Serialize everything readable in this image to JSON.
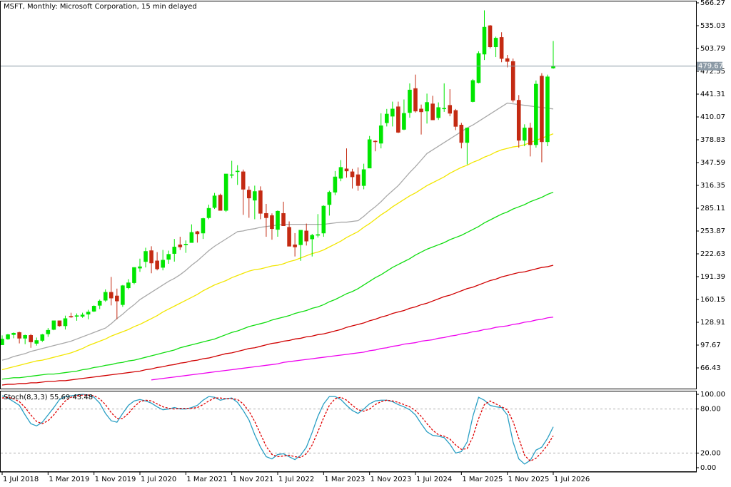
{
  "chart_data": [
    {
      "type": "candlestick",
      "title": "MSFT, Monthly:  Microsoft Corporation, 15 min delayed",
      "categories": [
        "1 Jul 2018",
        null,
        null,
        null,
        null,
        null,
        null,
        null,
        "1 Mar 2019",
        null,
        null,
        null,
        null,
        null,
        null,
        null,
        "1 Nov 2019",
        null,
        null,
        null,
        null,
        null,
        null,
        null,
        "1 Jul 2020",
        null,
        null,
        null,
        null,
        null,
        null,
        null,
        "1 Mar 2021",
        null,
        null,
        null,
        null,
        null,
        null,
        null,
        "1 Nov 2021",
        null,
        null,
        null,
        null,
        null,
        null,
        null,
        "1 Jul 2022",
        null,
        null,
        null,
        null,
        null,
        null,
        null,
        "1 Mar 2023",
        null,
        null,
        null,
        null,
        null,
        null,
        null,
        "1 Nov 2023",
        null,
        null,
        null,
        null,
        null,
        null,
        null,
        "1 Jul 2024",
        null,
        null,
        null,
        null,
        null,
        null,
        null,
        "1 Mar 2025",
        null,
        null,
        null,
        null,
        null,
        null,
        null,
        "1 Nov 2025",
        null,
        null,
        null,
        null,
        null,
        null,
        null,
        "1 Jul 2026"
      ],
      "open": [
        98,
        106,
        112,
        115,
        107,
        111,
        100,
        104,
        113,
        119,
        131,
        124,
        137,
        137,
        137,
        140,
        144,
        152,
        159,
        170,
        165,
        153,
        176,
        183,
        203,
        212,
        227,
        213,
        204,
        215,
        223,
        235,
        236,
        238,
        253,
        251,
        272,
        286,
        303,
        282,
        331,
        335,
        335,
        310,
        296,
        309,
        278,
        275,
        256,
        278,
        259,
        235,
        235,
        254,
        243,
        248,
        251,
        290,
        307,
        326,
        339,
        335,
        331,
        316,
        340,
        377,
        374,
        402,
        411,
        424,
        393,
        416,
        449,
        421,
        418,
        428,
        409,
        422,
        426,
        419,
        399,
        375,
        431,
        457,
        496,
        535,
        506,
        519,
        490,
        486,
        433,
        378,
        395,
        372,
        466,
        376,
        477
      ],
      "high": [
        111,
        113,
        115,
        116,
        112,
        113,
        108,
        113,
        121,
        131,
        131,
        138,
        142,
        141,
        142,
        146,
        152,
        160,
        174,
        191,
        175,
        180,
        188,
        204,
        216,
        231,
        233,
        225,
        228,
        227,
        243,
        246,
        241,
        263,
        254,
        272,
        290,
        306,
        305,
        332,
        350,
        344,
        338,
        315,
        316,
        315,
        291,
        278,
        282,
        294,
        267,
        251,
        255,
        264,
        250,
        277,
        289,
        309,
        336,
        351,
        367,
        339,
        341,
        346,
        384,
        378,
        415,
        421,
        431,
        431,
        434,
        456,
        468,
        427,
        442,
        439,
        430,
        456,
        448,
        421,
        402,
        395,
        462,
        500,
        556,
        536,
        520,
        526,
        495,
        490,
        440,
        400,
        402,
        460,
        470,
        468,
        514
      ],
      "low": [
        98,
        105,
        107,
        100,
        99,
        94,
        97,
        102,
        109,
        118,
        123,
        119,
        135,
        131,
        135,
        133,
        143,
        147,
        157,
        152,
        133,
        150,
        174,
        181,
        198,
        204,
        196,
        200,
        200,
        209,
        212,
        228,
        224,
        238,
        238,
        243,
        270,
        284,
        282,
        280,
        326,
        317,
        276,
        272,
        270,
        270,
        246,
        242,
        246,
        261,
        233,
        219,
        213,
        234,
        219,
        245,
        246,
        275,
        303,
        322,
        327,
        312,
        309,
        311,
        340,
        363,
        367,
        397,
        397,
        388,
        392,
        409,
        416,
        386,
        401,
        406,
        406,
        417,
        411,
        392,
        367,
        345,
        430,
        456,
        488,
        504,
        492,
        485,
        478,
        430,
        368,
        370,
        356,
        368,
        348,
        370,
        476
      ],
      "close": [
        106,
        112,
        114,
        107,
        111,
        102,
        104,
        112,
        118,
        131,
        124,
        134,
        136,
        138,
        139,
        143,
        151,
        158,
        170,
        162,
        158,
        179,
        183,
        204,
        205,
        226,
        210,
        202,
        214,
        222,
        232,
        232,
        236,
        252,
        250,
        271,
        285,
        302,
        282,
        332,
        331,
        336,
        311,
        299,
        308,
        278,
        272,
        257,
        281,
        261,
        233,
        232,
        255,
        240,
        248,
        249,
        288,
        307,
        328,
        341,
        336,
        328,
        316,
        338,
        379,
        376,
        398,
        414,
        421,
        389,
        415,
        447,
        418,
        417,
        430,
        406,
        423,
        422,
        415,
        397,
        375,
        395,
        460,
        497,
        533,
        506,
        518,
        490,
        486,
        433,
        378,
        395,
        372,
        455,
        376,
        465,
        479.67
      ],
      "up_color": "#00e600",
      "down_color": "#c42a12",
      "overlays": [
        {
          "color": "#a8a8a8",
          "values": [
            77,
            79,
            82,
            84,
            86,
            89,
            91,
            93,
            95,
            97,
            99,
            101,
            103,
            106,
            109,
            112,
            115,
            118,
            121,
            127,
            134,
            140,
            147,
            153,
            160,
            165,
            170,
            175,
            180,
            185,
            189,
            194,
            200,
            207,
            213,
            220,
            227,
            233,
            238,
            243,
            248,
            253,
            254,
            256,
            257,
            259,
            260,
            261,
            262,
            263,
            263,
            263,
            263,
            263,
            263,
            263,
            263,
            264,
            265,
            266,
            266,
            267,
            268,
            274,
            281,
            287,
            294,
            302,
            309,
            316,
            325,
            334,
            342,
            351,
            360,
            365,
            370,
            375,
            380,
            385,
            390,
            395,
            399,
            404,
            409,
            414,
            419,
            424,
            429,
            428,
            427,
            426,
            425,
            424,
            423,
            422,
            421
          ]
        },
        {
          "color": "#f2e600",
          "values": [
            64,
            66,
            68,
            70,
            72,
            74,
            76,
            77,
            79,
            81,
            83,
            85,
            87,
            90,
            93,
            97,
            100,
            103,
            106,
            110,
            113,
            116,
            119,
            123,
            126,
            130,
            134,
            138,
            143,
            147,
            151,
            155,
            159,
            163,
            167,
            172,
            176,
            180,
            183,
            186,
            190,
            193,
            196,
            199,
            201,
            202,
            204,
            206,
            207,
            209,
            212,
            214,
            217,
            220,
            223,
            225,
            228,
            232,
            236,
            240,
            245,
            249,
            253,
            259,
            264,
            270,
            276,
            281,
            287,
            292,
            297,
            302,
            306,
            311,
            316,
            320,
            324,
            328,
            333,
            337,
            341,
            344,
            348,
            351,
            355,
            358,
            362,
            365,
            367,
            369,
            370,
            372,
            375,
            378,
            381,
            384,
            387
          ]
        },
        {
          "color": "#10dd10",
          "values": [
            51,
            52,
            53,
            53,
            54,
            55,
            56,
            57,
            58,
            58,
            59,
            60,
            61,
            62,
            64,
            65,
            67,
            68,
            70,
            71,
            73,
            74,
            76,
            77,
            79,
            81,
            83,
            85,
            87,
            89,
            91,
            94,
            96,
            98,
            100,
            102,
            104,
            106,
            109,
            112,
            115,
            117,
            120,
            123,
            125,
            127,
            129,
            132,
            134,
            136,
            138,
            141,
            143,
            145,
            148,
            150,
            153,
            157,
            160,
            164,
            168,
            171,
            175,
            180,
            185,
            190,
            194,
            199,
            204,
            208,
            212,
            216,
            221,
            225,
            229,
            232,
            235,
            238,
            242,
            245,
            248,
            252,
            256,
            260,
            265,
            269,
            273,
            277,
            280,
            284,
            287,
            290,
            294,
            297,
            300,
            304,
            307
          ]
        },
        {
          "color": "#d00000",
          "values": [
            43,
            44,
            44,
            45,
            45,
            46,
            46,
            47,
            48,
            48,
            49,
            49,
            50,
            51,
            52,
            53,
            54,
            55,
            56,
            57,
            58,
            59,
            60,
            61,
            62,
            64,
            65,
            67,
            68,
            70,
            71,
            73,
            74,
            76,
            77,
            79,
            80,
            82,
            84,
            86,
            87,
            89,
            91,
            93,
            94,
            96,
            98,
            100,
            101,
            103,
            104,
            106,
            107,
            109,
            110,
            112,
            113,
            115,
            117,
            119,
            122,
            124,
            126,
            128,
            131,
            133,
            136,
            138,
            141,
            143,
            145,
            148,
            150,
            153,
            155,
            158,
            161,
            164,
            166,
            169,
            172,
            175,
            177,
            180,
            183,
            186,
            188,
            191,
            193,
            195,
            197,
            198,
            200,
            202,
            204,
            205,
            207
          ]
        },
        {
          "color": "#ee00ee",
          "values": [
            null,
            null,
            null,
            null,
            null,
            null,
            null,
            null,
            null,
            null,
            null,
            null,
            null,
            null,
            null,
            null,
            null,
            null,
            null,
            null,
            null,
            null,
            null,
            null,
            null,
            null,
            50,
            51,
            52,
            53,
            54,
            55,
            56,
            57,
            58,
            59,
            60,
            61,
            62,
            63,
            64,
            65,
            66,
            67,
            68,
            69,
            70,
            71,
            72,
            74,
            75,
            76,
            77,
            78,
            79,
            80,
            81,
            82,
            83,
            84,
            85,
            86,
            87,
            88,
            90,
            91,
            93,
            94,
            96,
            97,
            99,
            100,
            101,
            103,
            104,
            105,
            107,
            108,
            110,
            111,
            113,
            114,
            116,
            117,
            119,
            120,
            122,
            123,
            124,
            126,
            127,
            129,
            130,
            132,
            133,
            135,
            136
          ]
        }
      ],
      "last_price": 479.67,
      "ylim": [
        38.1,
        569.2
      ],
      "yticks": [
        566.27,
        535.03,
        503.79,
        472.55,
        441.31,
        410.07,
        378.83,
        347.59,
        316.35,
        285.11,
        253.87,
        222.63,
        191.39,
        160.15,
        128.91,
        97.67,
        66.43
      ]
    },
    {
      "type": "line",
      "title": "Stoch(8,3,3) 55.69 43.48",
      "series": [
        {
          "color": "#2a9fc4",
          "values": [
            98,
            95,
            90,
            85,
            72,
            60,
            57,
            62,
            72,
            82,
            93,
            97,
            98,
            99,
            100,
            99,
            96,
            88,
            74,
            64,
            62,
            74,
            85,
            91,
            93,
            91,
            88,
            83,
            79,
            80,
            82,
            80,
            80,
            82,
            85,
            92,
            97,
            96,
            92,
            94,
            95,
            89,
            78,
            65,
            45,
            28,
            15,
            12,
            18,
            19,
            15,
            11,
            17,
            28,
            48,
            70,
            87,
            97,
            97,
            93,
            85,
            78,
            74,
            80,
            87,
            91,
            92,
            92,
            90,
            86,
            83,
            79,
            72,
            60,
            49,
            44,
            43,
            41,
            32,
            20,
            22,
            35,
            70,
            96,
            92,
            85,
            83,
            82,
            72,
            35,
            12,
            5,
            10,
            24,
            28,
            40,
            55.69
          ]
        },
        {
          "color": "#e00000",
          "dash": true,
          "values": [
            95,
            96,
            94,
            90,
            82,
            72,
            63,
            60,
            64,
            72,
            82,
            91,
            96,
            98,
            99,
            99,
            98,
            94,
            86,
            75,
            67,
            67,
            74,
            83,
            90,
            92,
            91,
            87,
            83,
            81,
            80,
            81,
            81,
            81,
            82,
            86,
            91,
            95,
            95,
            94,
            94,
            93,
            87,
            77,
            63,
            46,
            29,
            18,
            15,
            16,
            17,
            15,
            14,
            19,
            31,
            49,
            68,
            85,
            94,
            96,
            92,
            85,
            79,
            77,
            80,
            86,
            90,
            92,
            91,
            89,
            86,
            83,
            78,
            70,
            60,
            51,
            45,
            43,
            39,
            31,
            25,
            26,
            42,
            67,
            86,
            91,
            87,
            83,
            79,
            63,
            40,
            17,
            9,
            13,
            21,
            31,
            43.48
          ]
        }
      ],
      "ylim": [
        -4.9,
        104.9
      ],
      "yticks": [
        {
          "value": 100,
          "label": "100.00"
        },
        {
          "value": 80,
          "label": "80.00"
        },
        {
          "value": 20,
          "label": "20.00"
        },
        {
          "value": 0,
          "label": "0.00"
        }
      ],
      "levels": [
        80,
        20
      ]
    }
  ]
}
